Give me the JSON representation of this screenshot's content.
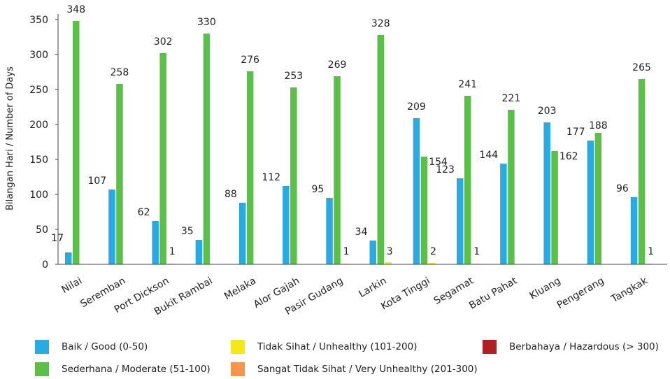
{
  "chart_data": {
    "type": "bar",
    "ylabel": "Bilangan Hari / Number of Days",
    "ylim": [
      0,
      350
    ],
    "yticks": [
      0,
      50,
      100,
      150,
      200,
      250,
      300,
      350
    ],
    "grid": false,
    "legend_position": "bottom",
    "categories": [
      "Nilai",
      "Seremban",
      "Port Dickson",
      "Bukit Rambai",
      "Melaka",
      "Alor Gajah",
      "Pasir Gudang",
      "Larkin",
      "Kota Tinggi",
      "Segamat",
      "Batu Pahat",
      "Kluang",
      "Pengerang",
      "Tangkak"
    ],
    "series": [
      {
        "name": "Baik / Good (0-50)",
        "color": "#29abe2",
        "values": [
          17,
          107,
          62,
          35,
          88,
          112,
          95,
          34,
          209,
          123,
          144,
          203,
          177,
          96
        ]
      },
      {
        "name": "Sederhana / Moderate (51-100)",
        "color": "#5cbf4a",
        "values": [
          348,
          258,
          302,
          330,
          276,
          253,
          269,
          328,
          154,
          241,
          221,
          162,
          188,
          265
        ]
      },
      {
        "name": "Tidak Sihat / Unhealthy (101-200)",
        "color": "#f5e81a",
        "values": [
          0,
          0,
          1,
          0,
          0,
          0,
          1,
          3,
          2,
          1,
          0,
          0,
          0,
          1
        ]
      },
      {
        "name": "Sangat Tidak Sihat / Very Unhealthy (201-300)",
        "color": "#f7964a",
        "values": [
          0,
          0,
          0,
          0,
          0,
          0,
          0,
          0,
          0,
          0,
          0,
          0,
          0,
          0
        ]
      },
      {
        "name": "Berbahaya / Hazardous (> 300)",
        "color": "#b01f24",
        "values": [
          0,
          0,
          0,
          0,
          0,
          0,
          0,
          0,
          0,
          0,
          0,
          0,
          0,
          0
        ]
      }
    ]
  }
}
